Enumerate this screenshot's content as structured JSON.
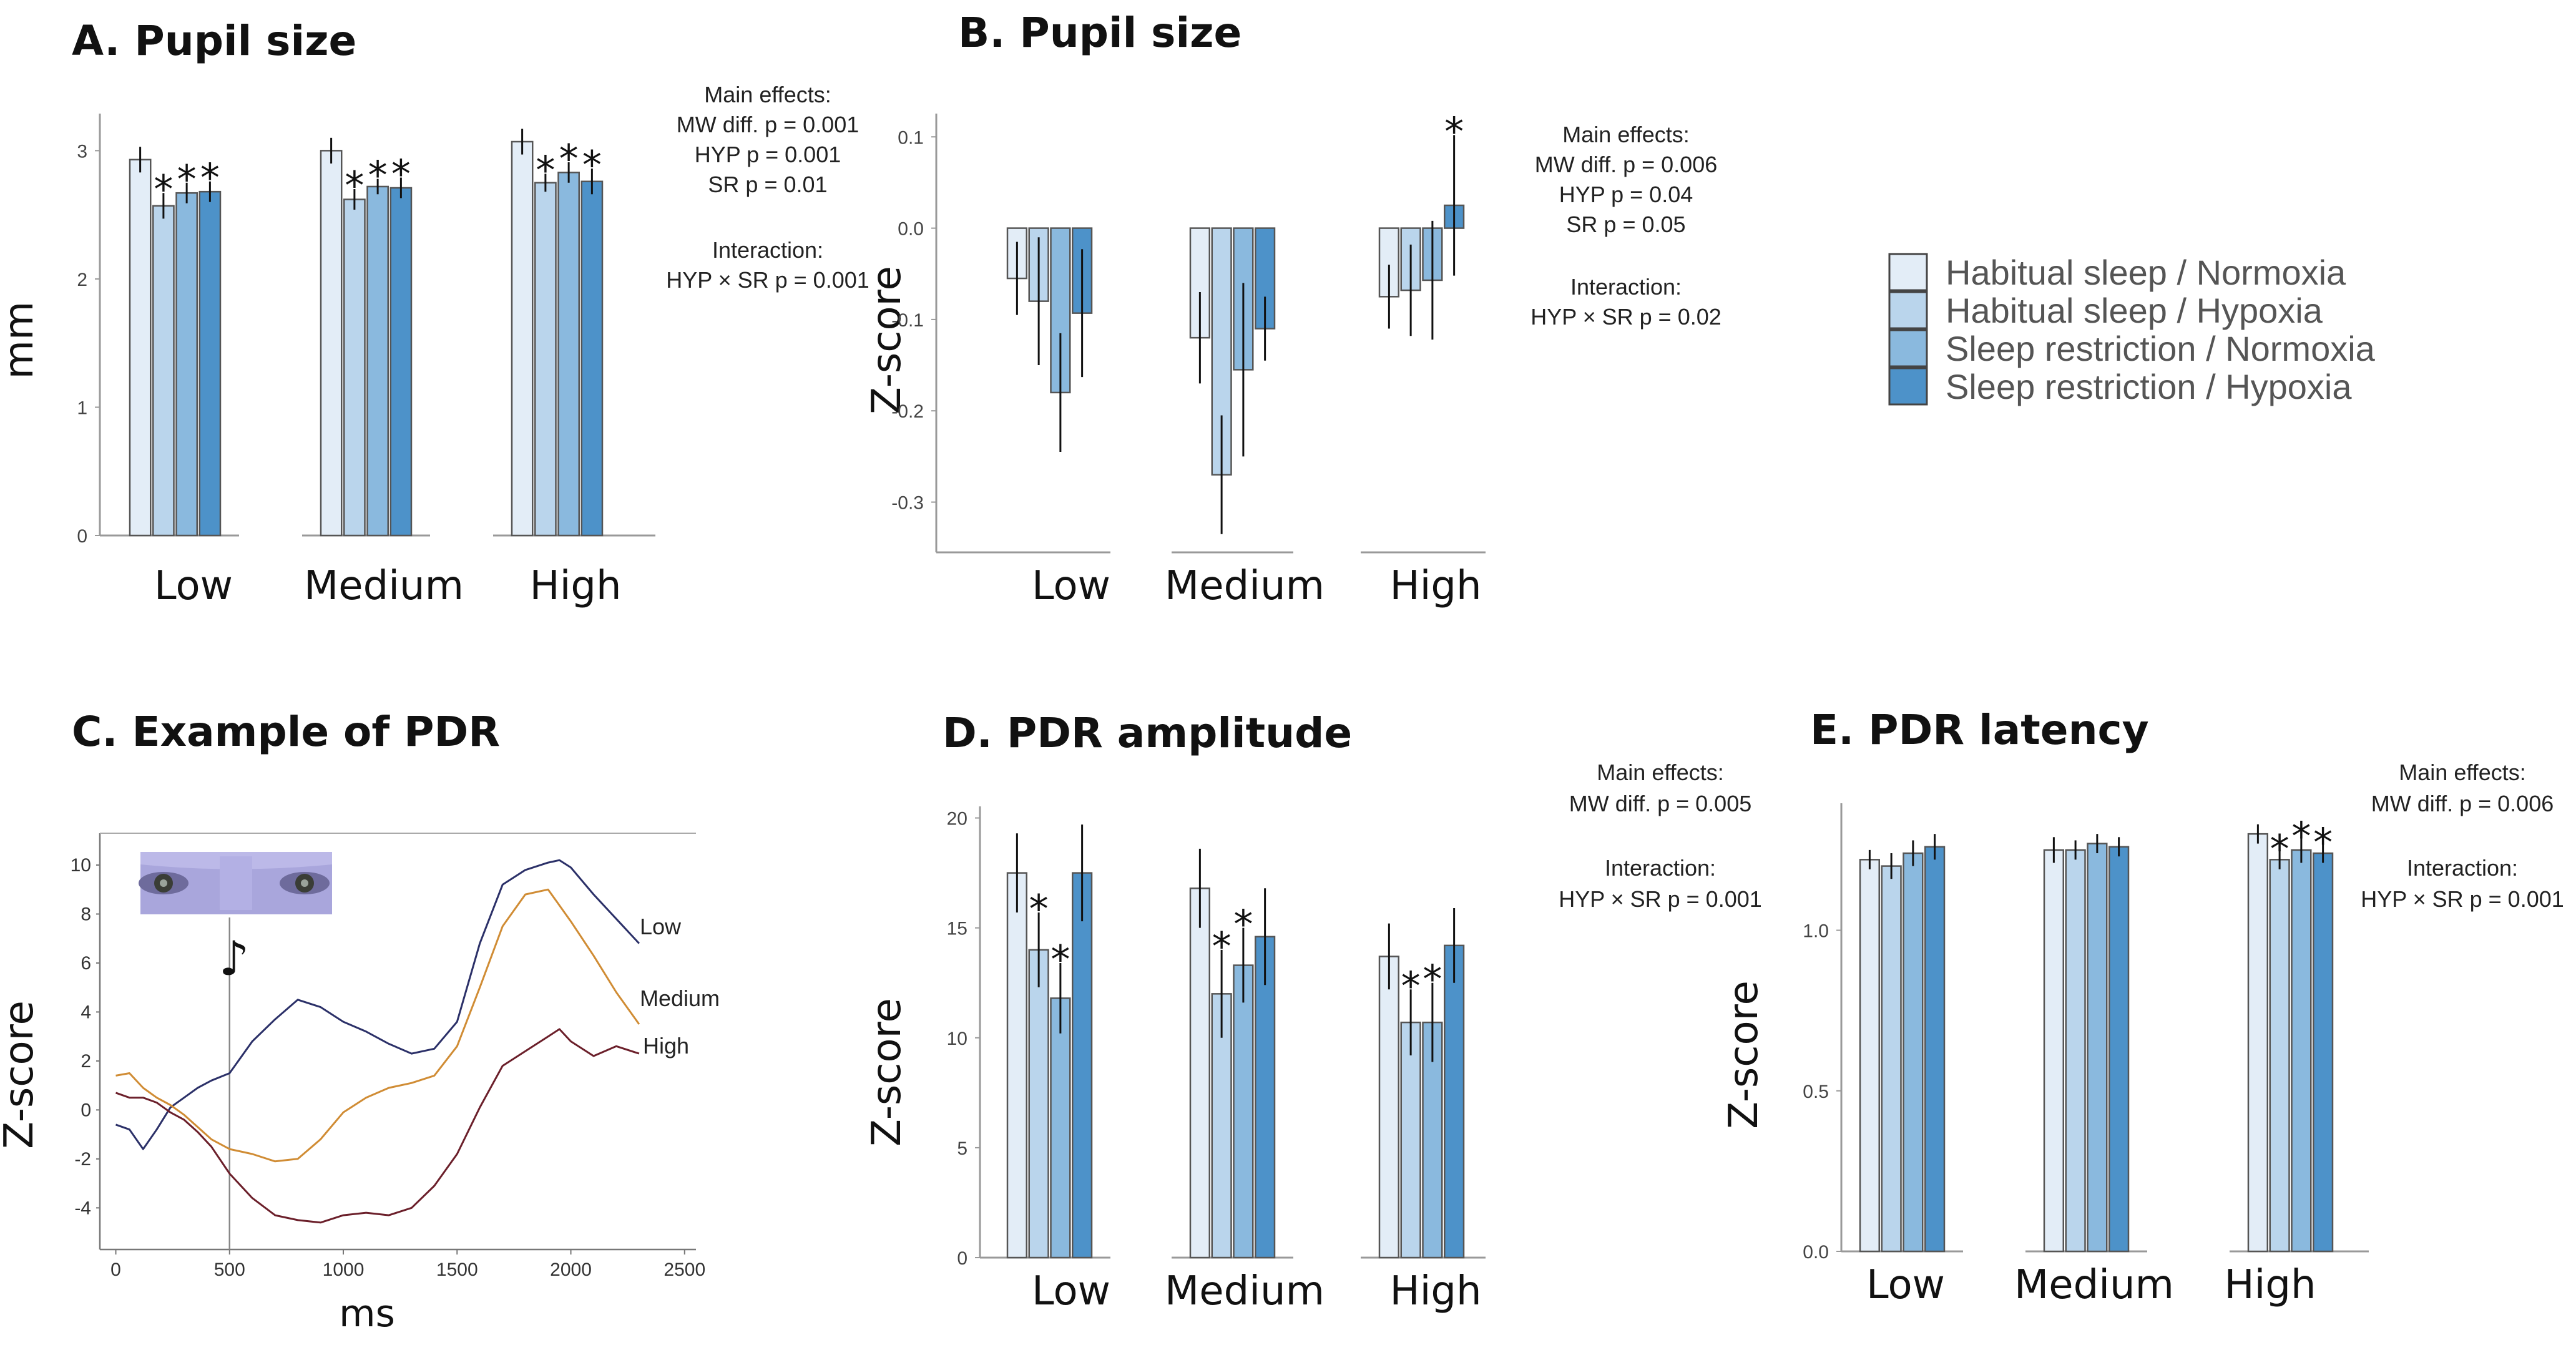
{
  "colors": {
    "series": [
      "#e3edf7",
      "#bad5ec",
      "#8ab9de",
      "#4d92c9"
    ],
    "bar_stroke": "#555555",
    "axis": "#999999",
    "pdr_low": "#2b3068",
    "pdr_medium": "#d08c34",
    "pdr_high": "#6b1f2a"
  },
  "legend": {
    "entries": [
      "Habitual sleep / Normoxia",
      "Habitual sleep / Hypoxia",
      "Sleep restriction / Normoxia",
      "Sleep restriction / Hypoxia"
    ]
  },
  "chart_data": [
    {
      "id": "A",
      "type": "bar",
      "title": "A. Pupil size",
      "ylabel": "mm",
      "xlabel": "",
      "ylim": [
        0,
        3.25
      ],
      "yticks": [
        "0",
        "1",
        "2",
        "3"
      ],
      "categories": [
        "Low",
        "Medium",
        "High"
      ],
      "series": [
        {
          "name": "Habitual sleep / Normoxia",
          "values": [
            2.93,
            3.0,
            3.07
          ],
          "errors": [
            0.1,
            0.1,
            0.1
          ]
        },
        {
          "name": "Habitual sleep / Hypoxia",
          "values": [
            2.57,
            2.62,
            2.75
          ],
          "errors": [
            0.1,
            0.08,
            0.07
          ]
        },
        {
          "name": "Sleep restriction / Normoxia",
          "values": [
            2.67,
            2.72,
            2.83
          ],
          "errors": [
            0.08,
            0.06,
            0.08
          ]
        },
        {
          "name": "Sleep restriction / Hypoxia",
          "values": [
            2.68,
            2.71,
            2.76
          ],
          "errors": [
            0.08,
            0.08,
            0.1
          ]
        }
      ],
      "stars": [
        [
          false,
          true,
          true,
          true
        ],
        [
          false,
          true,
          true,
          true
        ],
        [
          false,
          true,
          true,
          true
        ]
      ],
      "star_symbol": "*",
      "annotations": [
        "Main effects:",
        "MW diff. p = 0.001",
        "HYP p = 0.001",
        "SR p = 0.01",
        "",
        "Interaction:",
        "HYP × SR p = 0.001"
      ]
    },
    {
      "id": "B",
      "type": "bar",
      "title": "B. Pupil size",
      "ylabel": "Z-score",
      "xlabel": "",
      "ylim": [
        -0.355,
        0.12
      ],
      "yticks": [
        "0.1",
        "0.0",
        "-0.1",
        "-0.2",
        "-0.3"
      ],
      "categories": [
        "Low",
        "Medium",
        "High"
      ],
      "series": [
        {
          "name": "Habitual sleep / Normoxia",
          "values": [
            -0.055,
            -0.12,
            -0.075
          ],
          "errors": [
            0.04,
            0.05,
            0.035
          ]
        },
        {
          "name": "Habitual sleep / Hypoxia",
          "values": [
            -0.08,
            -0.27,
            -0.068
          ],
          "errors": [
            0.07,
            0.065,
            0.05
          ]
        },
        {
          "name": "Sleep restriction / Normoxia",
          "values": [
            -0.18,
            -0.155,
            -0.057
          ],
          "errors": [
            0.065,
            0.095,
            0.065
          ]
        },
        {
          "name": "Sleep restriction / Hypoxia",
          "values": [
            -0.093,
            -0.11,
            0.025
          ],
          "errors": [
            0.07,
            0.035,
            0.077
          ]
        }
      ],
      "stars": [
        [
          false,
          false,
          false,
          false
        ],
        [
          false,
          false,
          false,
          false
        ],
        [
          false,
          false,
          false,
          true
        ]
      ],
      "star_symbol": "*",
      "annotations": [
        "Main effects:",
        "MW diff. p = 0.006",
        "HYP p = 0.04",
        "SR p = 0.05",
        "",
        "Interaction:",
        "HYP × SR p = 0.02"
      ]
    },
    {
      "id": "C",
      "type": "line",
      "title": "C. Example of PDR",
      "ylabel": "Z-score",
      "xlabel": "ms",
      "xlim": [
        -70,
        2550
      ],
      "ylim": [
        -5.7,
        11.3
      ],
      "xticks": [
        "0",
        "500",
        "1000",
        "1500",
        "2000",
        "2500"
      ],
      "yticks": [
        "10",
        "8",
        "6",
        "4",
        "2",
        "0",
        "-2",
        "-4"
      ],
      "stimulus_ms": 500,
      "stimulus_symbol": "♪",
      "series": [
        {
          "name": "Low",
          "color_key": "pdr_low",
          "x": [
            0,
            60,
            120,
            180,
            240,
            300,
            360,
            420,
            500,
            600,
            700,
            800,
            900,
            1000,
            1100,
            1200,
            1300,
            1400,
            1500,
            1600,
            1700,
            1800,
            1900,
            1950,
            2000,
            2100,
            2200,
            2300
          ],
          "y": [
            -0.6,
            -0.8,
            -1.6,
            -0.8,
            0.1,
            0.5,
            0.9,
            1.2,
            1.5,
            2.8,
            3.7,
            4.5,
            4.2,
            3.6,
            3.2,
            2.7,
            2.3,
            2.5,
            3.6,
            6.8,
            9.2,
            9.8,
            10.1,
            10.2,
            9.9,
            8.8,
            7.8,
            6.8
          ]
        },
        {
          "name": "Medium",
          "color_key": "pdr_medium",
          "x": [
            0,
            60,
            120,
            180,
            240,
            300,
            360,
            420,
            500,
            600,
            700,
            800,
            900,
            1000,
            1100,
            1200,
            1300,
            1400,
            1500,
            1600,
            1700,
            1800,
            1900,
            2000,
            2100,
            2200,
            2300
          ],
          "y": [
            1.4,
            1.5,
            0.9,
            0.5,
            0.2,
            -0.2,
            -0.7,
            -1.2,
            -1.6,
            -1.8,
            -2.1,
            -2.0,
            -1.2,
            -0.1,
            0.5,
            0.9,
            1.1,
            1.4,
            2.6,
            5.0,
            7.5,
            8.8,
            9.0,
            7.7,
            6.3,
            4.8,
            3.5
          ]
        },
        {
          "name": "High",
          "color_key": "pdr_high",
          "x": [
            0,
            60,
            120,
            180,
            240,
            300,
            360,
            420,
            500,
            600,
            700,
            800,
            900,
            1000,
            1100,
            1200,
            1300,
            1400,
            1500,
            1600,
            1700,
            1800,
            1900,
            1950,
            2000,
            2100,
            2200,
            2300
          ],
          "y": [
            0.7,
            0.5,
            0.5,
            0.3,
            -0.1,
            -0.4,
            -0.9,
            -1.5,
            -2.6,
            -3.6,
            -4.3,
            -4.5,
            -4.6,
            -4.3,
            -4.2,
            -4.3,
            -4.0,
            -3.1,
            -1.8,
            0.1,
            1.8,
            2.4,
            3.0,
            3.3,
            2.8,
            2.2,
            2.6,
            2.3
          ]
        }
      ],
      "line_labels": [
        "Low",
        "Medium",
        "High"
      ]
    },
    {
      "id": "D",
      "type": "bar",
      "title": "D. PDR amplitude",
      "ylabel": "Z-score",
      "xlabel": "",
      "ylim": [
        0,
        20.3
      ],
      "yticks": [
        "0",
        "5",
        "10",
        "15",
        "20"
      ],
      "categories": [
        "Low",
        "Medium",
        "High"
      ],
      "series": [
        {
          "name": "Habitual sleep / Normoxia",
          "values": [
            17.5,
            16.8,
            13.7
          ],
          "errors": [
            1.8,
            1.8,
            1.5
          ]
        },
        {
          "name": "Habitual sleep / Hypoxia",
          "values": [
            14.0,
            12.0,
            10.7
          ],
          "errors": [
            1.7,
            2.0,
            1.5
          ]
        },
        {
          "name": "Sleep restriction / Normoxia",
          "values": [
            11.8,
            13.3,
            10.7
          ],
          "errors": [
            1.6,
            1.7,
            1.8
          ]
        },
        {
          "name": "Sleep restriction / Hypoxia",
          "values": [
            17.5,
            14.6,
            14.2
          ],
          "errors": [
            2.2,
            2.2,
            1.7
          ]
        }
      ],
      "stars": [
        [
          false,
          true,
          true,
          false
        ],
        [
          false,
          true,
          true,
          false
        ],
        [
          false,
          true,
          true,
          false
        ]
      ],
      "star_symbol": "*",
      "annotations": [
        "Main effects:",
        "MW diff. p = 0.005",
        "",
        "Interaction:",
        "HYP × SR p = 0.001"
      ]
    },
    {
      "id": "E",
      "type": "bar",
      "title": "E. PDR latency",
      "ylabel": "Z-score",
      "xlabel": "",
      "ylim": [
        0,
        1.38
      ],
      "yticks": [
        "0.0",
        "0.5",
        "1.0"
      ],
      "categories": [
        "Low",
        "Medium",
        "High"
      ],
      "series": [
        {
          "name": "Habitual sleep / Normoxia",
          "values": [
            1.22,
            1.25,
            1.3
          ],
          "errors": [
            0.03,
            0.04,
            0.03
          ]
        },
        {
          "name": "Habitual sleep / Hypoxia",
          "values": [
            1.2,
            1.25,
            1.22
          ],
          "errors": [
            0.04,
            0.03,
            0.03
          ]
        },
        {
          "name": "Sleep restriction / Normoxia",
          "values": [
            1.24,
            1.27,
            1.25
          ],
          "errors": [
            0.04,
            0.03,
            0.04
          ]
        },
        {
          "name": "Sleep restriction / Hypoxia",
          "values": [
            1.26,
            1.26,
            1.24
          ],
          "errors": [
            0.04,
            0.03,
            0.03
          ]
        }
      ],
      "stars": [
        [
          false,
          false,
          false,
          false
        ],
        [
          false,
          false,
          false,
          false
        ],
        [
          false,
          true,
          true,
          true
        ]
      ],
      "star_symbol": "*",
      "annotations": [
        "Main effects:",
        "MW diff. p = 0.006",
        "",
        "Interaction:",
        "HYP × SR p = 0.001"
      ]
    }
  ]
}
